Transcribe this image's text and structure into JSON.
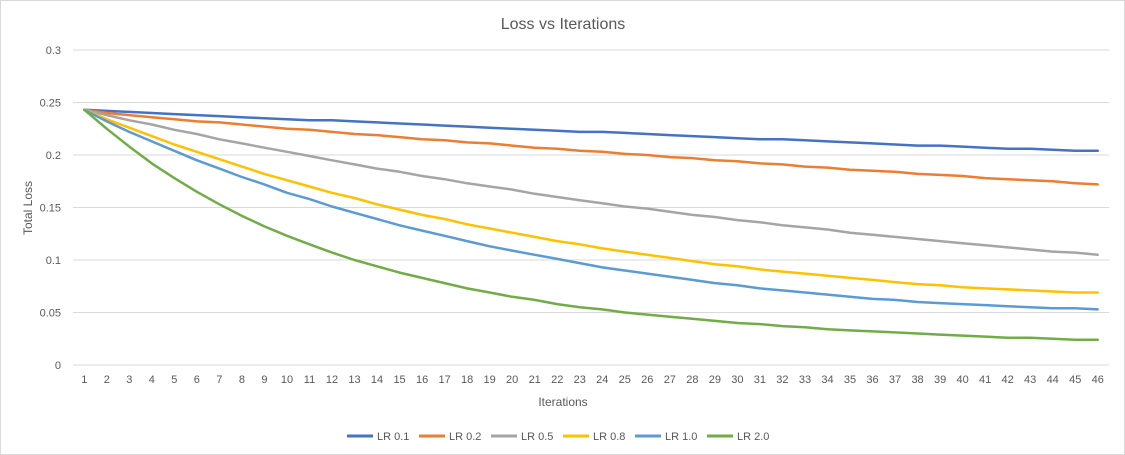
{
  "chart_data": {
    "type": "line",
    "title": "Loss vs Iterations",
    "xlabel": "Iterations",
    "ylabel": "Total Loss",
    "ylim": [
      0,
      0.3
    ],
    "yticks": [
      "0",
      "0.05",
      "0.1",
      "0.15",
      "0.2",
      "0.25",
      "0.3"
    ],
    "x": [
      1,
      2,
      3,
      4,
      5,
      6,
      7,
      8,
      9,
      10,
      11,
      12,
      13,
      14,
      15,
      16,
      17,
      18,
      19,
      20,
      21,
      22,
      23,
      24,
      25,
      26,
      27,
      28,
      29,
      30,
      31,
      32,
      33,
      34,
      35,
      36,
      37,
      38,
      39,
      40,
      41,
      42,
      43,
      44,
      45,
      46
    ],
    "grid": true,
    "legend_position": "bottom",
    "series": [
      {
        "name": "LR 0.1",
        "color": "#4472C4",
        "values": [
          0.243,
          0.242,
          0.241,
          0.24,
          0.239,
          0.238,
          0.237,
          0.236,
          0.235,
          0.234,
          0.233,
          0.233,
          0.232,
          0.231,
          0.23,
          0.229,
          0.228,
          0.227,
          0.226,
          0.225,
          0.224,
          0.223,
          0.222,
          0.222,
          0.221,
          0.22,
          0.219,
          0.218,
          0.217,
          0.216,
          0.215,
          0.215,
          0.214,
          0.213,
          0.212,
          0.211,
          0.21,
          0.209,
          0.209,
          0.208,
          0.207,
          0.206,
          0.206,
          0.205,
          0.204,
          0.204
        ]
      },
      {
        "name": "LR 0.2",
        "color": "#ED7D31",
        "values": [
          0.243,
          0.24,
          0.238,
          0.236,
          0.234,
          0.232,
          0.231,
          0.229,
          0.227,
          0.225,
          0.224,
          0.222,
          0.22,
          0.219,
          0.217,
          0.215,
          0.214,
          0.212,
          0.211,
          0.209,
          0.207,
          0.206,
          0.204,
          0.203,
          0.201,
          0.2,
          0.198,
          0.197,
          0.195,
          0.194,
          0.192,
          0.191,
          0.189,
          0.188,
          0.186,
          0.185,
          0.184,
          0.182,
          0.181,
          0.18,
          0.178,
          0.177,
          0.176,
          0.175,
          0.173,
          0.172
        ]
      },
      {
        "name": "LR 0.5",
        "color": "#A5A5A5",
        "values": [
          0.243,
          0.238,
          0.233,
          0.229,
          0.224,
          0.22,
          0.215,
          0.211,
          0.207,
          0.203,
          0.199,
          0.195,
          0.191,
          0.187,
          0.184,
          0.18,
          0.177,
          0.173,
          0.17,
          0.167,
          0.163,
          0.16,
          0.157,
          0.154,
          0.151,
          0.149,
          0.146,
          0.143,
          0.141,
          0.138,
          0.136,
          0.133,
          0.131,
          0.129,
          0.126,
          0.124,
          0.122,
          0.12,
          0.118,
          0.116,
          0.114,
          0.112,
          0.11,
          0.108,
          0.107,
          0.105
        ]
      },
      {
        "name": "LR 0.8",
        "color": "#FFC000",
        "values": [
          0.243,
          0.234,
          0.226,
          0.218,
          0.21,
          0.203,
          0.196,
          0.189,
          0.182,
          0.176,
          0.17,
          0.164,
          0.159,
          0.153,
          0.148,
          0.143,
          0.139,
          0.134,
          0.13,
          0.126,
          0.122,
          0.118,
          0.115,
          0.111,
          0.108,
          0.105,
          0.102,
          0.099,
          0.096,
          0.094,
          0.091,
          0.089,
          0.087,
          0.085,
          0.083,
          0.081,
          0.079,
          0.077,
          0.076,
          0.074,
          0.073,
          0.072,
          0.071,
          0.07,
          0.069,
          0.069
        ]
      },
      {
        "name": "LR 1.0",
        "color": "#5B9BD5",
        "values": [
          0.243,
          0.232,
          0.222,
          0.213,
          0.204,
          0.195,
          0.187,
          0.179,
          0.172,
          0.164,
          0.158,
          0.151,
          0.145,
          0.139,
          0.133,
          0.128,
          0.123,
          0.118,
          0.113,
          0.109,
          0.105,
          0.101,
          0.097,
          0.093,
          0.09,
          0.087,
          0.084,
          0.081,
          0.078,
          0.076,
          0.073,
          0.071,
          0.069,
          0.067,
          0.065,
          0.063,
          0.062,
          0.06,
          0.059,
          0.058,
          0.057,
          0.056,
          0.055,
          0.054,
          0.054,
          0.053
        ]
      },
      {
        "name": "LR 2.0",
        "color": "#70AD47",
        "values": [
          0.243,
          0.225,
          0.208,
          0.192,
          0.178,
          0.165,
          0.153,
          0.142,
          0.132,
          0.123,
          0.115,
          0.107,
          0.1,
          0.094,
          0.088,
          0.083,
          0.078,
          0.073,
          0.069,
          0.065,
          0.062,
          0.058,
          0.055,
          0.053,
          0.05,
          0.048,
          0.046,
          0.044,
          0.042,
          0.04,
          0.039,
          0.037,
          0.036,
          0.034,
          0.033,
          0.032,
          0.031,
          0.03,
          0.029,
          0.028,
          0.027,
          0.026,
          0.026,
          0.025,
          0.024,
          0.024
        ]
      }
    ]
  }
}
